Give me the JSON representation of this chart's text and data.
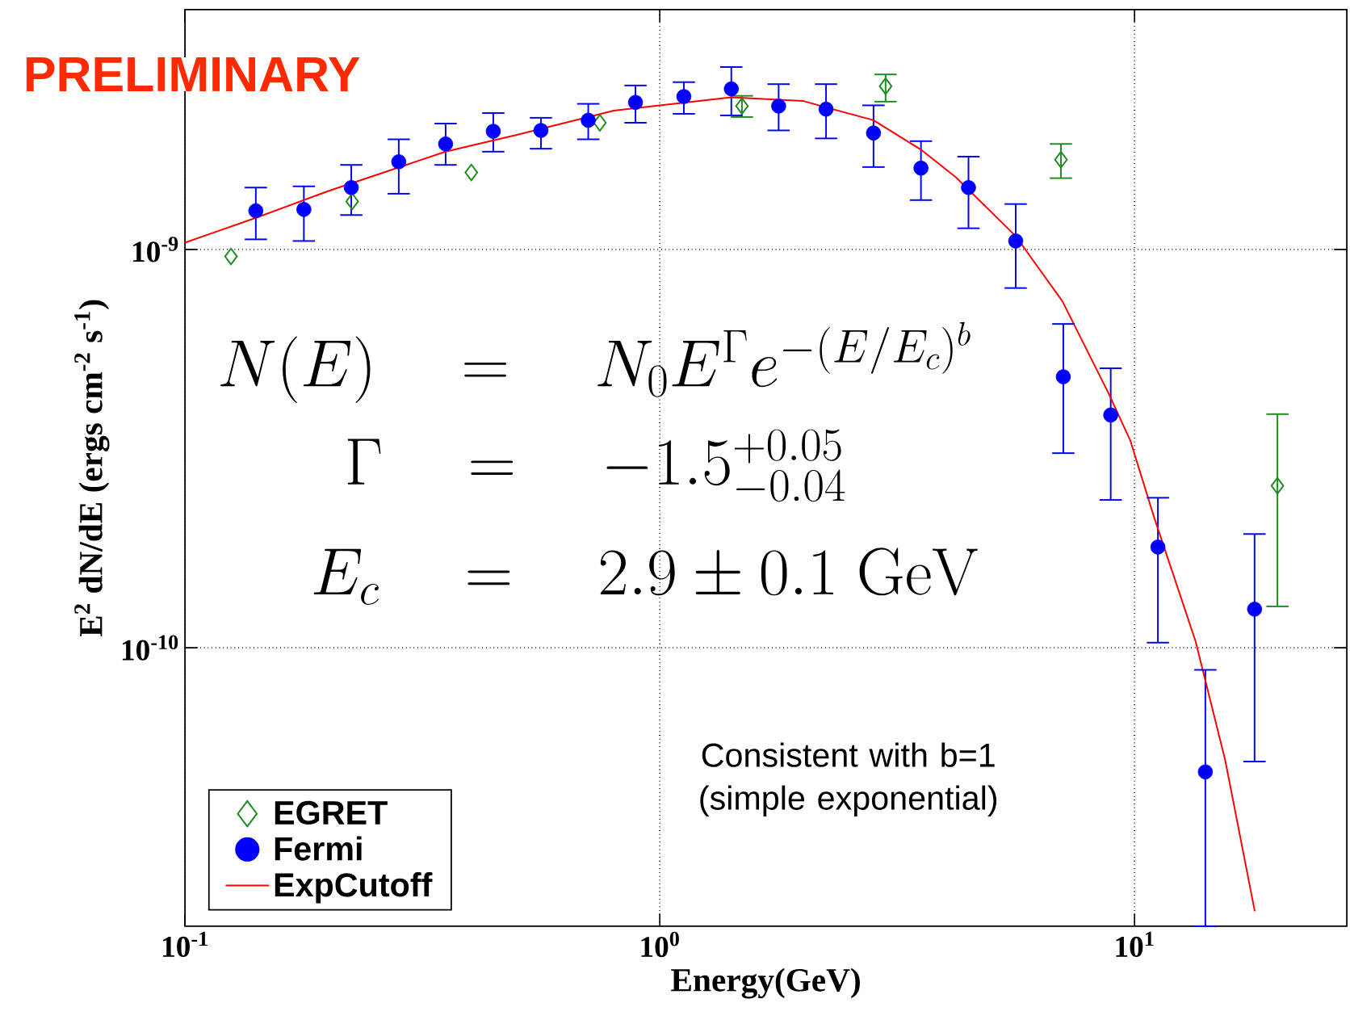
{
  "chart_data": {
    "type": "scatter",
    "xlabel": "Energy(GeV)",
    "ylabel": "E$^{2}$ dN/dE (ergs cm$^{-2}$ s$^{-1}$)",
    "log": "xy",
    "xlim": [
      0.1,
      28
    ],
    "ylim": [
      2e-11,
      4e-09
    ],
    "xticks": [
      {
        "value": 0.1,
        "label": "10$^{-1}$"
      },
      {
        "value": 1,
        "label": "10$^{0}$"
      },
      {
        "value": 10,
        "label": "10$^{1}$"
      }
    ],
    "yticks": [
      {
        "value": 1e-10,
        "label": "10$^{-10}$"
      },
      {
        "value": 1e-09,
        "label": "10$^{-9}$"
      }
    ],
    "grid": true,
    "legend": "bottom left",
    "annotations": [
      "PRELIMINARY",
      "N(E) \\quad = \\quad N_0E^{\\Gamma}e^{-(E/E_c)^b}",
      "\\Gamma \\quad = \\quad -1.5^{+0.05}_{-0.04}",
      "E_c \\quad = \\quad 2.9\\pm 0.1\\ \\mathrm{GeV}",
      "Consistent with b=1 (simple exponential)"
    ],
    "series": [
      {
        "name": "EGRET",
        "type": "scatter",
        "marker": "diamond",
        "color": "#1e8c1e",
        "x": [
          0.125,
          0.225,
          0.401,
          0.748,
          1.49,
          2.99,
          7.0,
          20.0
        ],
        "values": [
          9.6e-10,
          1.32e-09,
          1.56e-09,
          2.08e-09,
          2.29e-09,
          2.57e-09,
          1.68e-09,
          2.55e-10
        ],
        "errors": [
          null,
          null,
          null,
          null,
          [
            2.15e-09,
            2.43e-09
          ],
          [
            2.35e-09,
            2.75e-09
          ],
          [
            1.51e-09,
            1.84e-09
          ],
          [
            1.27e-10,
            3.86e-10
          ]
        ]
      },
      {
        "name": "Fermi",
        "type": "scatter",
        "marker": "circle",
        "color": "#0000ff",
        "x": [
          0.141,
          0.178,
          0.224,
          0.282,
          0.354,
          0.446,
          0.562,
          0.707,
          0.889,
          1.124,
          1.415,
          1.78,
          2.24,
          2.82,
          3.55,
          4.47,
          5.62,
          7.08,
          8.91,
          11.2,
          14.1,
          17.9
        ],
        "values": [
          1.25e-09,
          1.26e-09,
          1.43e-09,
          1.66e-09,
          1.84e-09,
          1.98e-09,
          1.99e-09,
          2.11e-09,
          2.34e-09,
          2.42e-09,
          2.53e-09,
          2.29e-09,
          2.25e-09,
          1.96e-09,
          1.6e-09,
          1.43e-09,
          1.05e-09,
          4.79e-10,
          3.84e-10,
          1.79e-10,
          4.88e-11,
          1.25e-10
        ],
        "errors": [
          [
            1.06e-09,
            1.43e-09
          ],
          [
            1.05e-09,
            1.44e-09
          ],
          [
            1.22e-09,
            1.63e-09
          ],
          [
            1.38e-09,
            1.89e-09
          ],
          [
            1.63e-09,
            2.07e-09
          ],
          [
            1.76e-09,
            2.2e-09
          ],
          [
            1.79e-09,
            2.14e-09
          ],
          [
            1.89e-09,
            2.32e-09
          ],
          [
            2.08e-09,
            2.58e-09
          ],
          [
            2.19e-09,
            2.63e-09
          ],
          [
            2.17e-09,
            2.87e-09
          ],
          [
            1.99e-09,
            2.6e-09
          ],
          [
            1.9e-09,
            2.6e-09
          ],
          [
            1.61e-09,
            2.3e-09
          ],
          [
            1.33e-09,
            1.87e-09
          ],
          [
            1.13e-09,
            1.71e-09
          ],
          [
            8e-10,
            1.3e-09
          ],
          [
            3.08e-10,
            6.5e-10
          ],
          [
            2.35e-10,
            5.03e-10
          ],
          [
            1.03e-10,
            2.38e-10
          ],
          [
            2e-11,
            8.8e-11
          ],
          [
            5.18e-11,
            1.93e-10
          ]
        ]
      },
      {
        "name": "ExpCutoff",
        "type": "line",
        "marker": "none",
        "color": "#ff0000",
        "x": [
          0.1,
          0.141,
          0.2,
          0.354,
          0.5,
          0.8,
          1.415,
          2.0,
          2.82,
          3.55,
          4.2,
          5.62,
          7.05,
          8.81,
          9.8,
          10.99,
          13.44,
          15.52,
          17.92
        ],
        "values": [
          1.04e-09,
          1.2e-09,
          1.4e-09,
          1.76e-09,
          1.94e-09,
          2.23e-09,
          2.41e-09,
          2.36e-09,
          2.11e-09,
          1.78e-09,
          1.52e-09,
          1.08e-09,
          7.41e-10,
          4.36e-10,
          3.31e-10,
          2.13e-10,
          1.04e-10,
          5.23e-11,
          2.18e-11
        ]
      }
    ]
  }
}
